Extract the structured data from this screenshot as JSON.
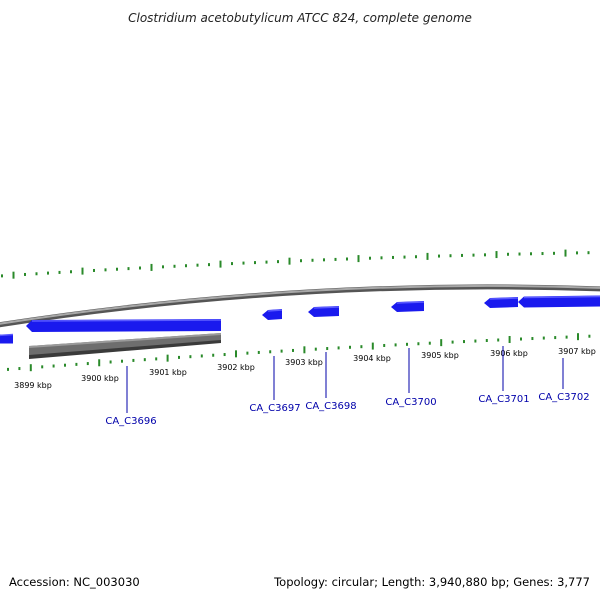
{
  "title": "Clostridium acetobutylicum ATCC 824, complete genome",
  "footer": {
    "accession": "Accession: NC_003030",
    "summary": "Topology: circular; Length: 3,940,880 bp; Genes: 3,777"
  },
  "colors": {
    "gene_fill": "#1a1aee",
    "gene_highlight": "#5a5aff",
    "gene_label": "#0000aa",
    "tick": "#2a8a2a",
    "backbone": "#8a8a8a",
    "backbone_dark": "#555555",
    "reverse_track": "#6e6e6e"
  },
  "scale": {
    "kbp_labels": [
      "3899 kbp",
      "3900 kbp",
      "3901 kbp",
      "3902 kbp",
      "3903 kbp",
      "3904 kbp",
      "3905 kbp",
      "3906 kbp",
      "3907 kbp"
    ]
  },
  "genes": [
    {
      "label": "CA_C3696"
    },
    {
      "label": "CA_C3697"
    },
    {
      "label": "CA_C3698"
    },
    {
      "label": "CA_C3700"
    },
    {
      "label": "CA_C3701"
    },
    {
      "label": "CA_C3702"
    }
  ]
}
